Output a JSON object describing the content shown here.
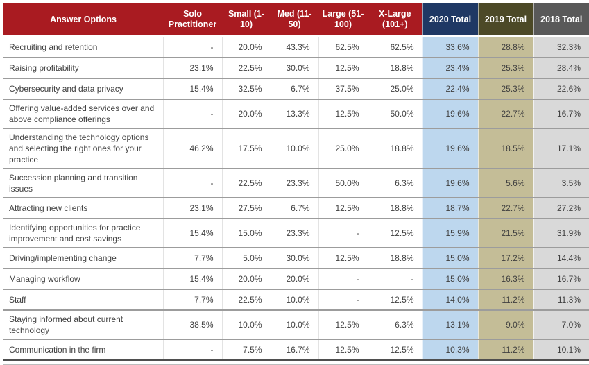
{
  "chart_data": {
    "type": "table",
    "title": "",
    "columns": [
      "Answer Options",
      "Solo Practitioner",
      "Small (1-10)",
      "Med (11-50)",
      "Large (51-100)",
      "X-Large (101+)",
      "2020 Total",
      "2019 Total",
      "2018 Total"
    ],
    "rows": [
      {
        "label": "Recruiting and retention",
        "values": [
          "-",
          "20.0%",
          "43.3%",
          "62.5%",
          "62.5%",
          "33.6%",
          "28.8%",
          "32.3%"
        ]
      },
      {
        "label": "Raising profitability",
        "values": [
          "23.1%",
          "22.5%",
          "30.0%",
          "12.5%",
          "18.8%",
          "23.4%",
          "25.3%",
          "28.4%"
        ]
      },
      {
        "label": "Cybersecurity and data privacy",
        "values": [
          "15.4%",
          "32.5%",
          "6.7%",
          "37.5%",
          "25.0%",
          "22.4%",
          "25.3%",
          "22.6%"
        ]
      },
      {
        "label": "Offering value-added services over and above compliance offerings",
        "values": [
          "-",
          "20.0%",
          "13.3%",
          "12.5%",
          "50.0%",
          "19.6%",
          "22.7%",
          "16.7%"
        ]
      },
      {
        "label": "Understanding the technology options and selecting the right ones for your practice",
        "values": [
          "46.2%",
          "17.5%",
          "10.0%",
          "25.0%",
          "18.8%",
          "19.6%",
          "18.5%",
          "17.1%"
        ]
      },
      {
        "label": "Succession planning and transition issues",
        "values": [
          "-",
          "22.5%",
          "23.3%",
          "50.0%",
          "6.3%",
          "19.6%",
          "5.6%",
          "3.5%"
        ]
      },
      {
        "label": "Attracting new clients",
        "values": [
          "23.1%",
          "27.5%",
          "6.7%",
          "12.5%",
          "18.8%",
          "18.7%",
          "22.7%",
          "27.2%"
        ]
      },
      {
        "label": "Identifying opportunities for practice improvement and cost savings",
        "values": [
          "15.4%",
          "15.0%",
          "23.3%",
          "-",
          "12.5%",
          "15.9%",
          "21.5%",
          "31.9%"
        ]
      },
      {
        "label": "Driving/implementing change",
        "values": [
          "7.7%",
          "5.0%",
          "30.0%",
          "12.5%",
          "18.8%",
          "15.0%",
          "17.2%",
          "14.4%"
        ]
      },
      {
        "label": "Managing workflow",
        "values": [
          "15.4%",
          "20.0%",
          "20.0%",
          "-",
          "-",
          "15.0%",
          "16.3%",
          "16.7%"
        ]
      },
      {
        "label": "Staff",
        "values": [
          "7.7%",
          "22.5%",
          "10.0%",
          "-",
          "12.5%",
          "14.0%",
          "11.2%",
          "11.3%"
        ]
      },
      {
        "label": "Staying informed about current technology",
        "values": [
          "38.5%",
          "10.0%",
          "10.0%",
          "12.5%",
          "6.3%",
          "13.1%",
          "9.0%",
          "7.0%"
        ]
      },
      {
        "label": "Communication in the firm",
        "values": [
          "-",
          "7.5%",
          "16.7%",
          "12.5%",
          "12.5%",
          "10.3%",
          "11.2%",
          "10.1%"
        ]
      }
    ]
  },
  "colors": {
    "header_red": "#A91B21",
    "header_navy": "#1F3864",
    "header_olive": "#4C4927",
    "header_gray": "#595959",
    "total_2020_fill": "#BDD7EE",
    "total_2019_fill": "#C4BD97",
    "total_2018_fill": "#D9D9D9",
    "header_text": "#FFFFFF",
    "body_text": "#404040",
    "row_line": "#9C9C9C"
  }
}
